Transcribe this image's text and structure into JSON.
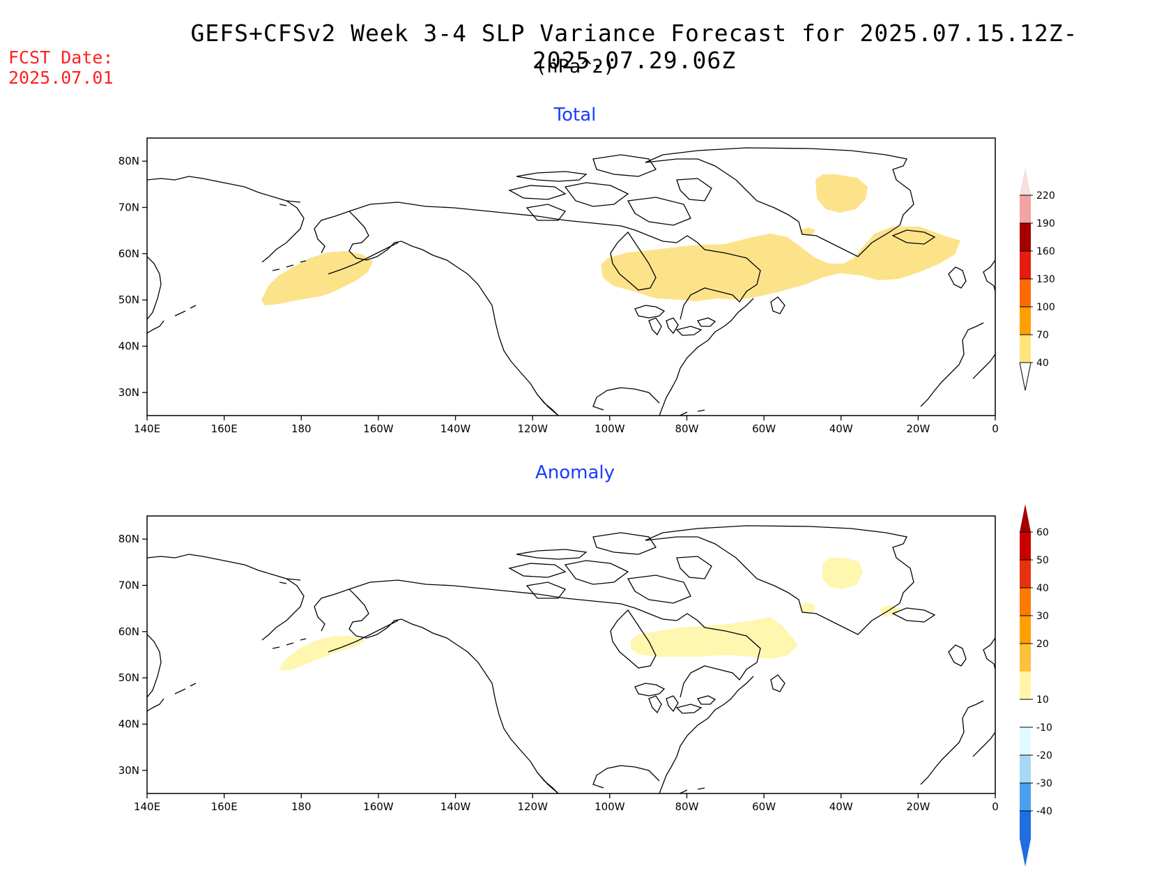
{
  "header": {
    "title": "GEFS+CFSv2 Week 3-4 SLP Variance Forecast for 2025.07.15.12Z-2025.07.29.06Z",
    "units": "(hPa^2)",
    "fcst_label": "FCST Date:",
    "fcst_date": "2025.07.01",
    "fcst_color": "#ff2020"
  },
  "panels": [
    {
      "title": "Total",
      "lat_labels": [
        "80N",
        "70N",
        "60N",
        "50N",
        "40N",
        "30N"
      ],
      "lon_labels": [
        "140E",
        "160E",
        "180",
        "160W",
        "140W",
        "120W",
        "100W",
        "80W",
        "60W",
        "40W",
        "20W",
        "0"
      ],
      "colorbar_labels": [
        "220",
        "190",
        "160",
        "130",
        "100",
        "70",
        "40"
      ],
      "colorbar_colors": [
        "#f2a3a3",
        "#a50000",
        "#e51c0f",
        "#ff6a00",
        "#ff9f00",
        "#ffe47a"
      ],
      "fill_color": "#fce38a"
    },
    {
      "title": "Anomaly",
      "lat_labels": [
        "80N",
        "70N",
        "60N",
        "50N",
        "40N",
        "30N"
      ],
      "lon_labels": [
        "140E",
        "160E",
        "180",
        "160W",
        "140W",
        "120W",
        "100W",
        "80W",
        "60W",
        "40W",
        "20W",
        "0"
      ],
      "colorbar_labels": [
        "60",
        "50",
        "40",
        "30",
        "20",
        "10",
        "-10",
        "-20",
        "-30",
        "-40"
      ],
      "colorbar_colors": [
        "#c80000",
        "#e8320f",
        "#ff7a00",
        "#ffa000",
        "#fcc03a",
        "#fff4a8",
        "#ffffff",
        "#e0fbff",
        "#a6d8f6",
        "#4aa0ee",
        "#1f6fe0"
      ],
      "fill_color": "#fff6b0"
    }
  ]
}
